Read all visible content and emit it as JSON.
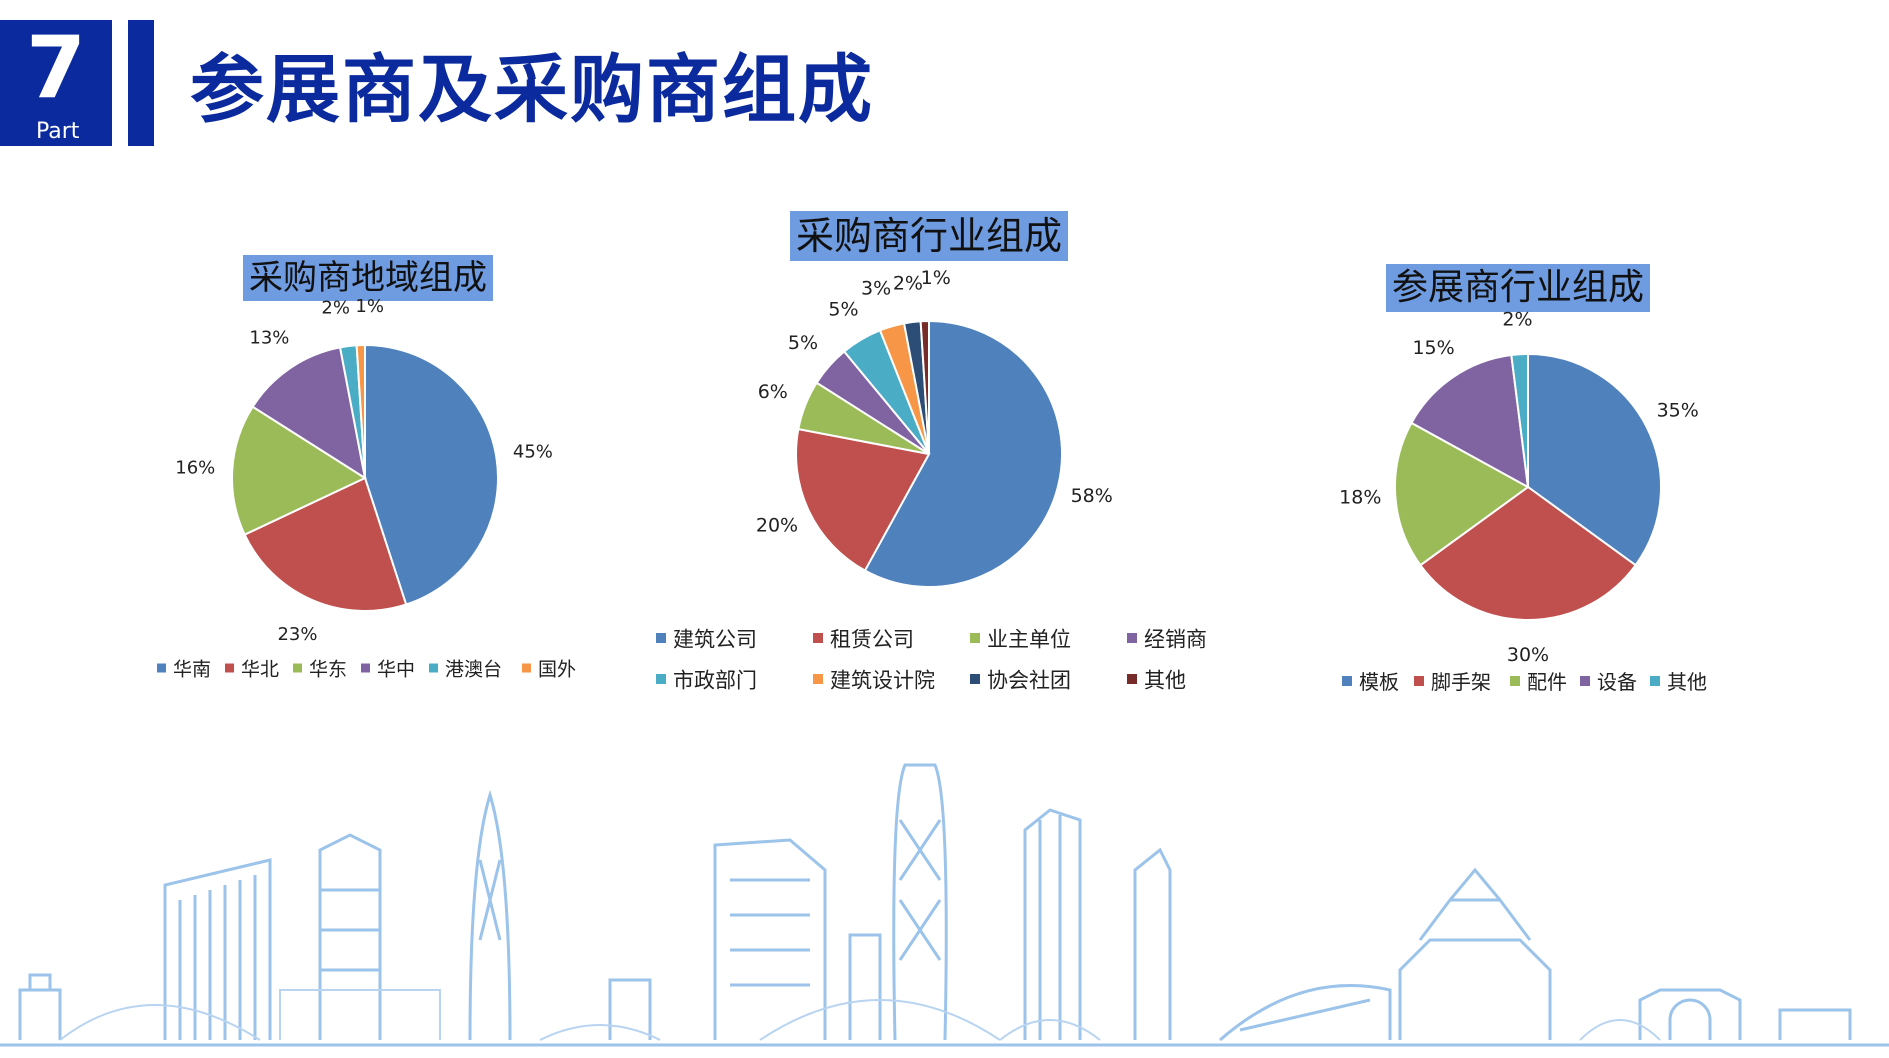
{
  "header": {
    "part_number": "7",
    "part_label": "Part",
    "title": "参展商及采购商组成"
  },
  "colors": {
    "brand": "#0a2a9e",
    "title_box": "#6f9be0",
    "skyline": "#9cc3ea"
  },
  "chart_data": [
    {
      "type": "pie",
      "title": "采购商地域组成",
      "categories": [
        "华南",
        "华北",
        "华东",
        "华中",
        "港澳台",
        "国外"
      ],
      "values": [
        45,
        23,
        16,
        13,
        2,
        1
      ],
      "labels": [
        "45%",
        "23%",
        "16%",
        "13%",
        "2%",
        "1%"
      ],
      "colors": [
        "#4f81bd",
        "#c0504d",
        "#9bbb59",
        "#8064a2",
        "#4bacc6",
        "#f79646"
      ],
      "legend": "bottom"
    },
    {
      "type": "pie",
      "title": "采购商行业组成",
      "categories": [
        "建筑公司",
        "租赁公司",
        "业主单位",
        "经销商",
        "市政部门",
        "建筑设计院",
        "协会社团",
        "其他"
      ],
      "values": [
        58,
        20,
        6,
        5,
        5,
        3,
        2,
        1
      ],
      "labels": [
        "58%",
        "20%",
        "6%",
        "5%",
        "5%",
        "3%",
        "2%",
        "1%"
      ],
      "colors": [
        "#4f81bd",
        "#c0504d",
        "#9bbb59",
        "#8064a2",
        "#4bacc6",
        "#f79646",
        "#2c4d75",
        "#772c2a"
      ],
      "legend": "bottom"
    },
    {
      "type": "pie",
      "title": "参展商行业组成",
      "categories": [
        "模板",
        "脚手架",
        "配件",
        "设备",
        "其他"
      ],
      "values": [
        35,
        30,
        18,
        15,
        2
      ],
      "labels": [
        "35%",
        "30%",
        "18%",
        "15%",
        "2%"
      ],
      "colors": [
        "#4f81bd",
        "#c0504d",
        "#9bbb59",
        "#8064a2",
        "#4bacc6"
      ],
      "legend": "bottom"
    }
  ]
}
